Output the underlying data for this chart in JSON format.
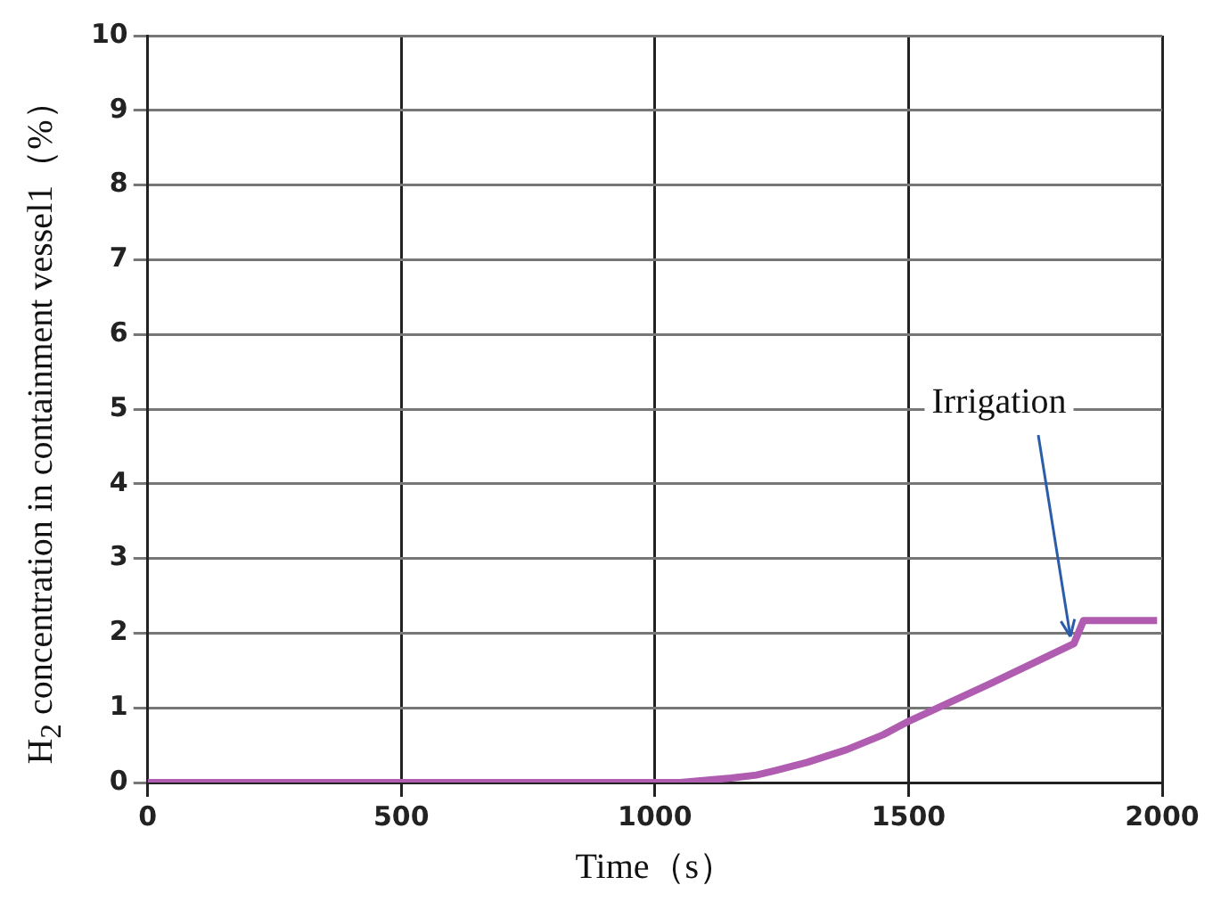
{
  "chart_data": {
    "type": "line",
    "xlabel": "Time（s）",
    "ylabel": "H$_{2}$ concentration in containment vessel1（%）",
    "x": [
      0,
      500,
      1000,
      1050,
      1100,
      1150,
      1200,
      1237,
      1300,
      1378,
      1450,
      1500,
      1580,
      1660,
      1740,
      1826,
      1845,
      1900,
      1990
    ],
    "series": [
      {
        "color": "#b05cb0",
        "values": [
          0,
          0,
          0,
          0,
          0.03,
          0.06,
          0.1,
          0.16,
          0.27,
          0.44,
          0.64,
          0.82,
          1.07,
          1.32,
          1.58,
          1.86,
          2.17,
          2.17,
          2.17
        ]
      }
    ],
    "xlim": [
      0,
      2000
    ],
    "xticks": [
      0,
      500,
      1000,
      1500,
      2000
    ],
    "ylim": [
      0,
      10
    ],
    "yticks": [
      0,
      1,
      2,
      3,
      4,
      5,
      6,
      7,
      8,
      9,
      10
    ],
    "grid": true,
    "legend": false,
    "marker": "none",
    "line_style": "solid",
    "annotations": [
      {
        "text": "Irrigation",
        "x": 1826,
        "y": 1.86
      }
    ]
  }
}
